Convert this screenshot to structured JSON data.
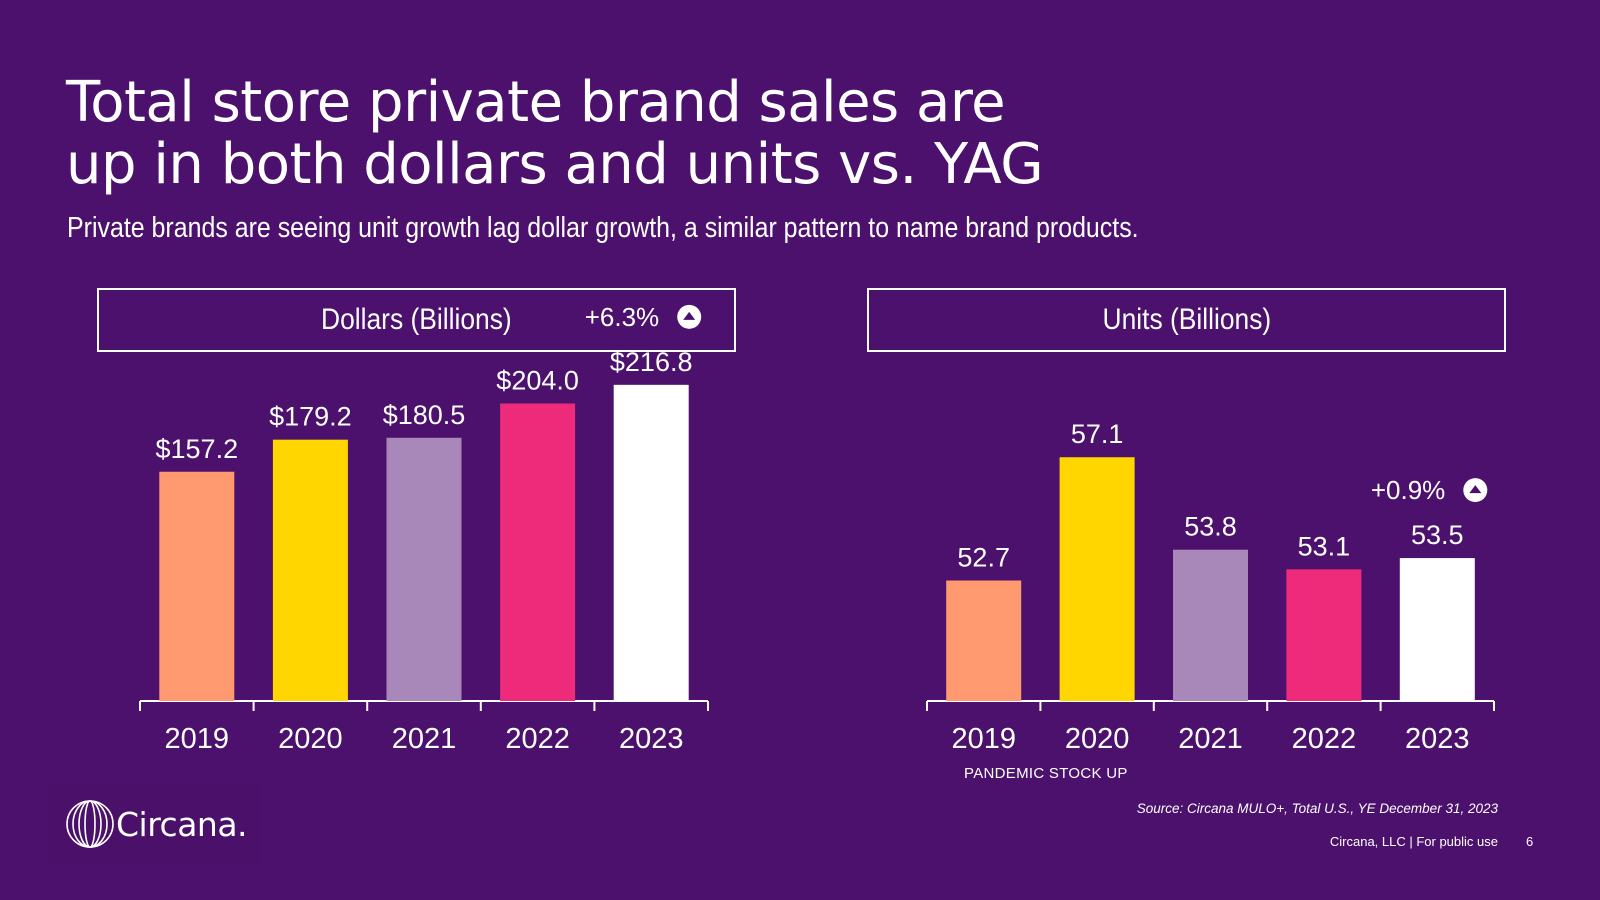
{
  "slide": {
    "title_line1": "Total store private brand sales are",
    "title_line2": "up in both dollars and units vs. YAG",
    "subtitle": "Private brands are seeing unit growth lag dollar growth, a similar pattern to name brand products.",
    "source": "Source: Circana MULO+, Total U.S., YE December 31, 2023",
    "footer": "Circana, LLC |  For public use",
    "page_number": "6",
    "logo_text": "Circana.",
    "background_color": "#4C116D"
  },
  "chart_data": [
    {
      "type": "bar",
      "title": "Dollars (Billions)",
      "categories": [
        "2019",
        "2020",
        "2021",
        "2022",
        "2023"
      ],
      "values": [
        157.2,
        179.2,
        180.5,
        204.0,
        216.8
      ],
      "value_labels": [
        "$157.2",
        "$179.2",
        "$180.5",
        "$204.0",
        "$216.8"
      ],
      "colors": [
        "#FF9A70",
        "#FFD600",
        "#A788B8",
        "#EE2A7B",
        "#FFFFFF"
      ],
      "growth": "+6.3%",
      "growth_direction": "up",
      "growth_category": "2023",
      "ylim": [
        0,
        240
      ],
      "xlabel": "",
      "ylabel": "",
      "grid": false
    },
    {
      "type": "bar",
      "title": "Units (Billions)",
      "categories": [
        "2019",
        "2020",
        "2021",
        "2022",
        "2023"
      ],
      "values": [
        52.7,
        57.1,
        53.8,
        53.1,
        53.5
      ],
      "value_labels": [
        "52.7",
        "57.1",
        "53.8",
        "53.1",
        "53.5"
      ],
      "colors": [
        "#FF9A70",
        "#FFD600",
        "#A788B8",
        "#EE2A7B",
        "#FFFFFF"
      ],
      "growth": "+0.9%",
      "growth_direction": "up",
      "growth_category": "2023",
      "annotation": "PANDEMIC STOCK UP",
      "annotation_category": "2020",
      "ylim": [
        48.4,
        58.5
      ],
      "xlabel": "",
      "ylabel": "",
      "grid": false
    }
  ]
}
